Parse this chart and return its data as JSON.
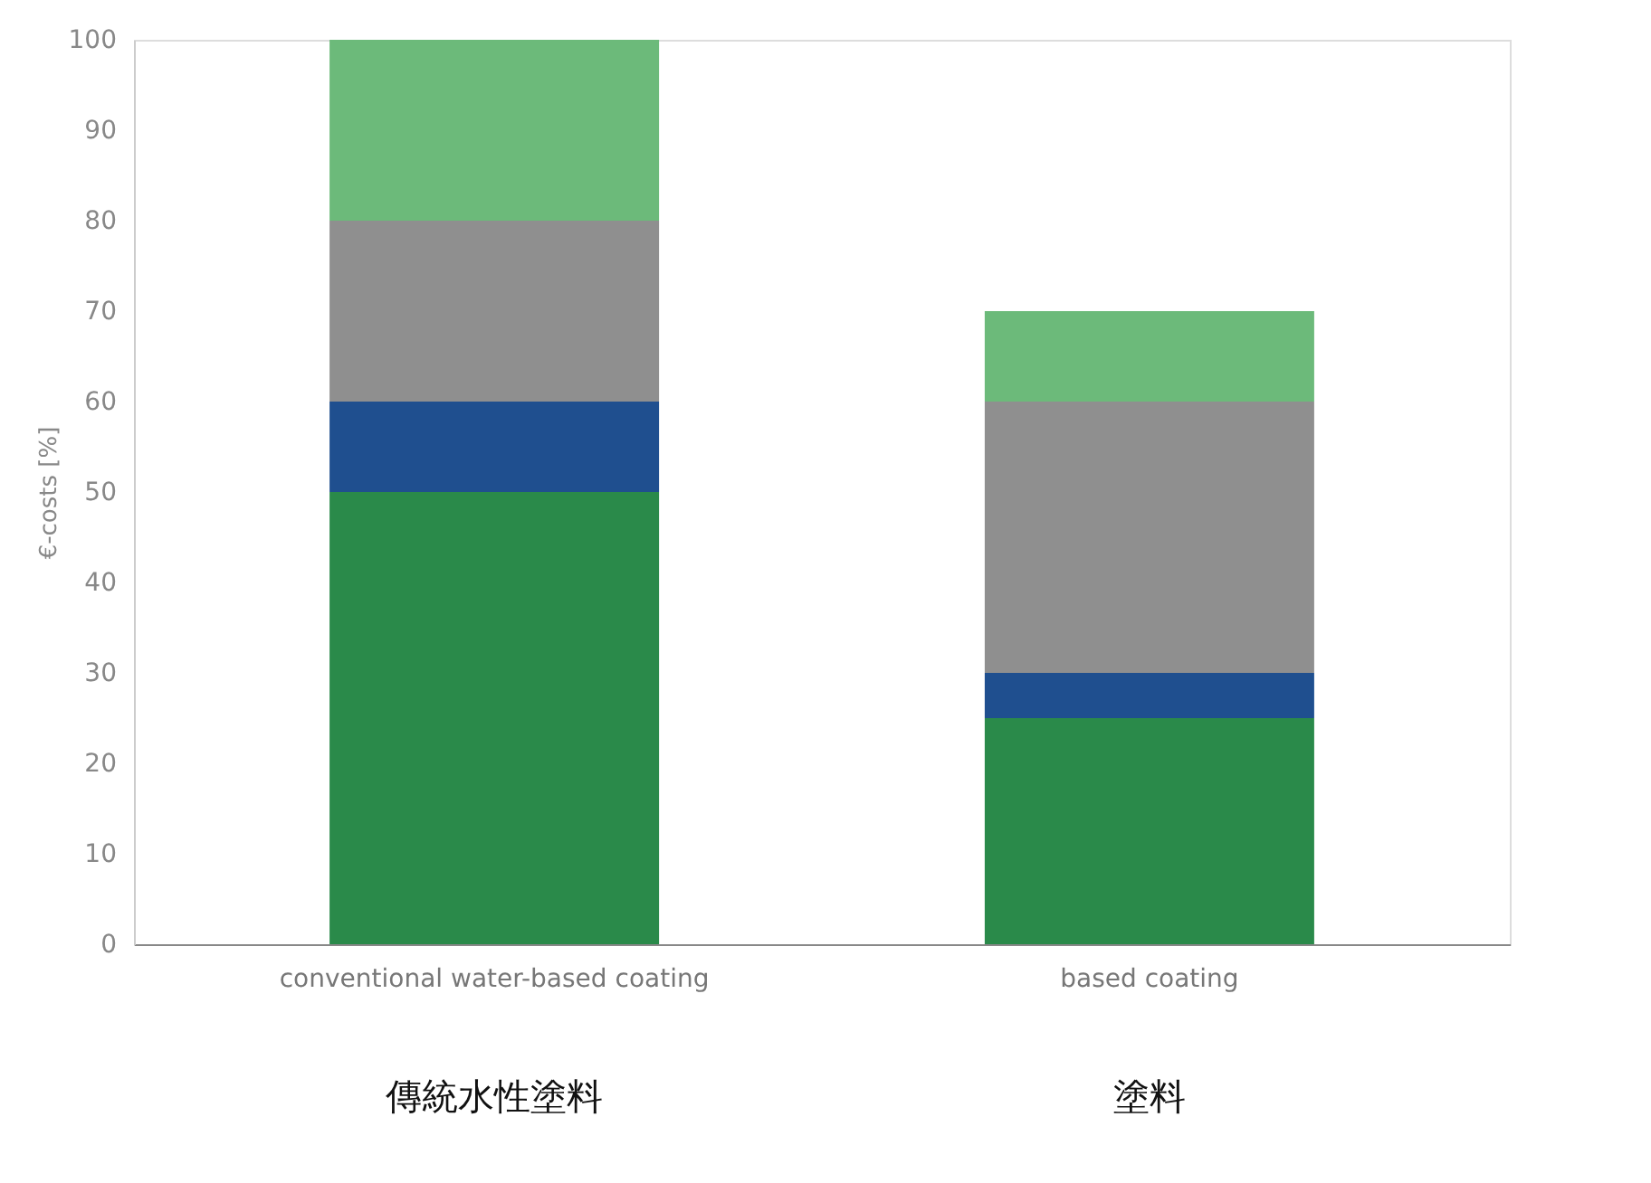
{
  "chart_data": {
    "type": "bar",
    "stacked": true,
    "ylabel": "€-costs [%]",
    "categories": [
      "conventional water-based coating",
      "based coating"
    ],
    "series": [
      {
        "color": "#2a8a4a",
        "values": [
          50,
          25
        ]
      },
      {
        "color": "#1f4f8f",
        "values": [
          10,
          5
        ]
      },
      {
        "color": "#8f8f8f",
        "values": [
          20,
          30
        ]
      },
      {
        "color": "#6cba7a",
        "values": [
          20,
          10
        ]
      }
    ],
    "ylim": [
      0,
      100
    ],
    "yticks": [
      0,
      10,
      20,
      30,
      40,
      50,
      60,
      70,
      80,
      90,
      100
    ],
    "grid": false,
    "legend": false,
    "annotations": [
      "傳統水性塗料",
      "塗料"
    ]
  }
}
